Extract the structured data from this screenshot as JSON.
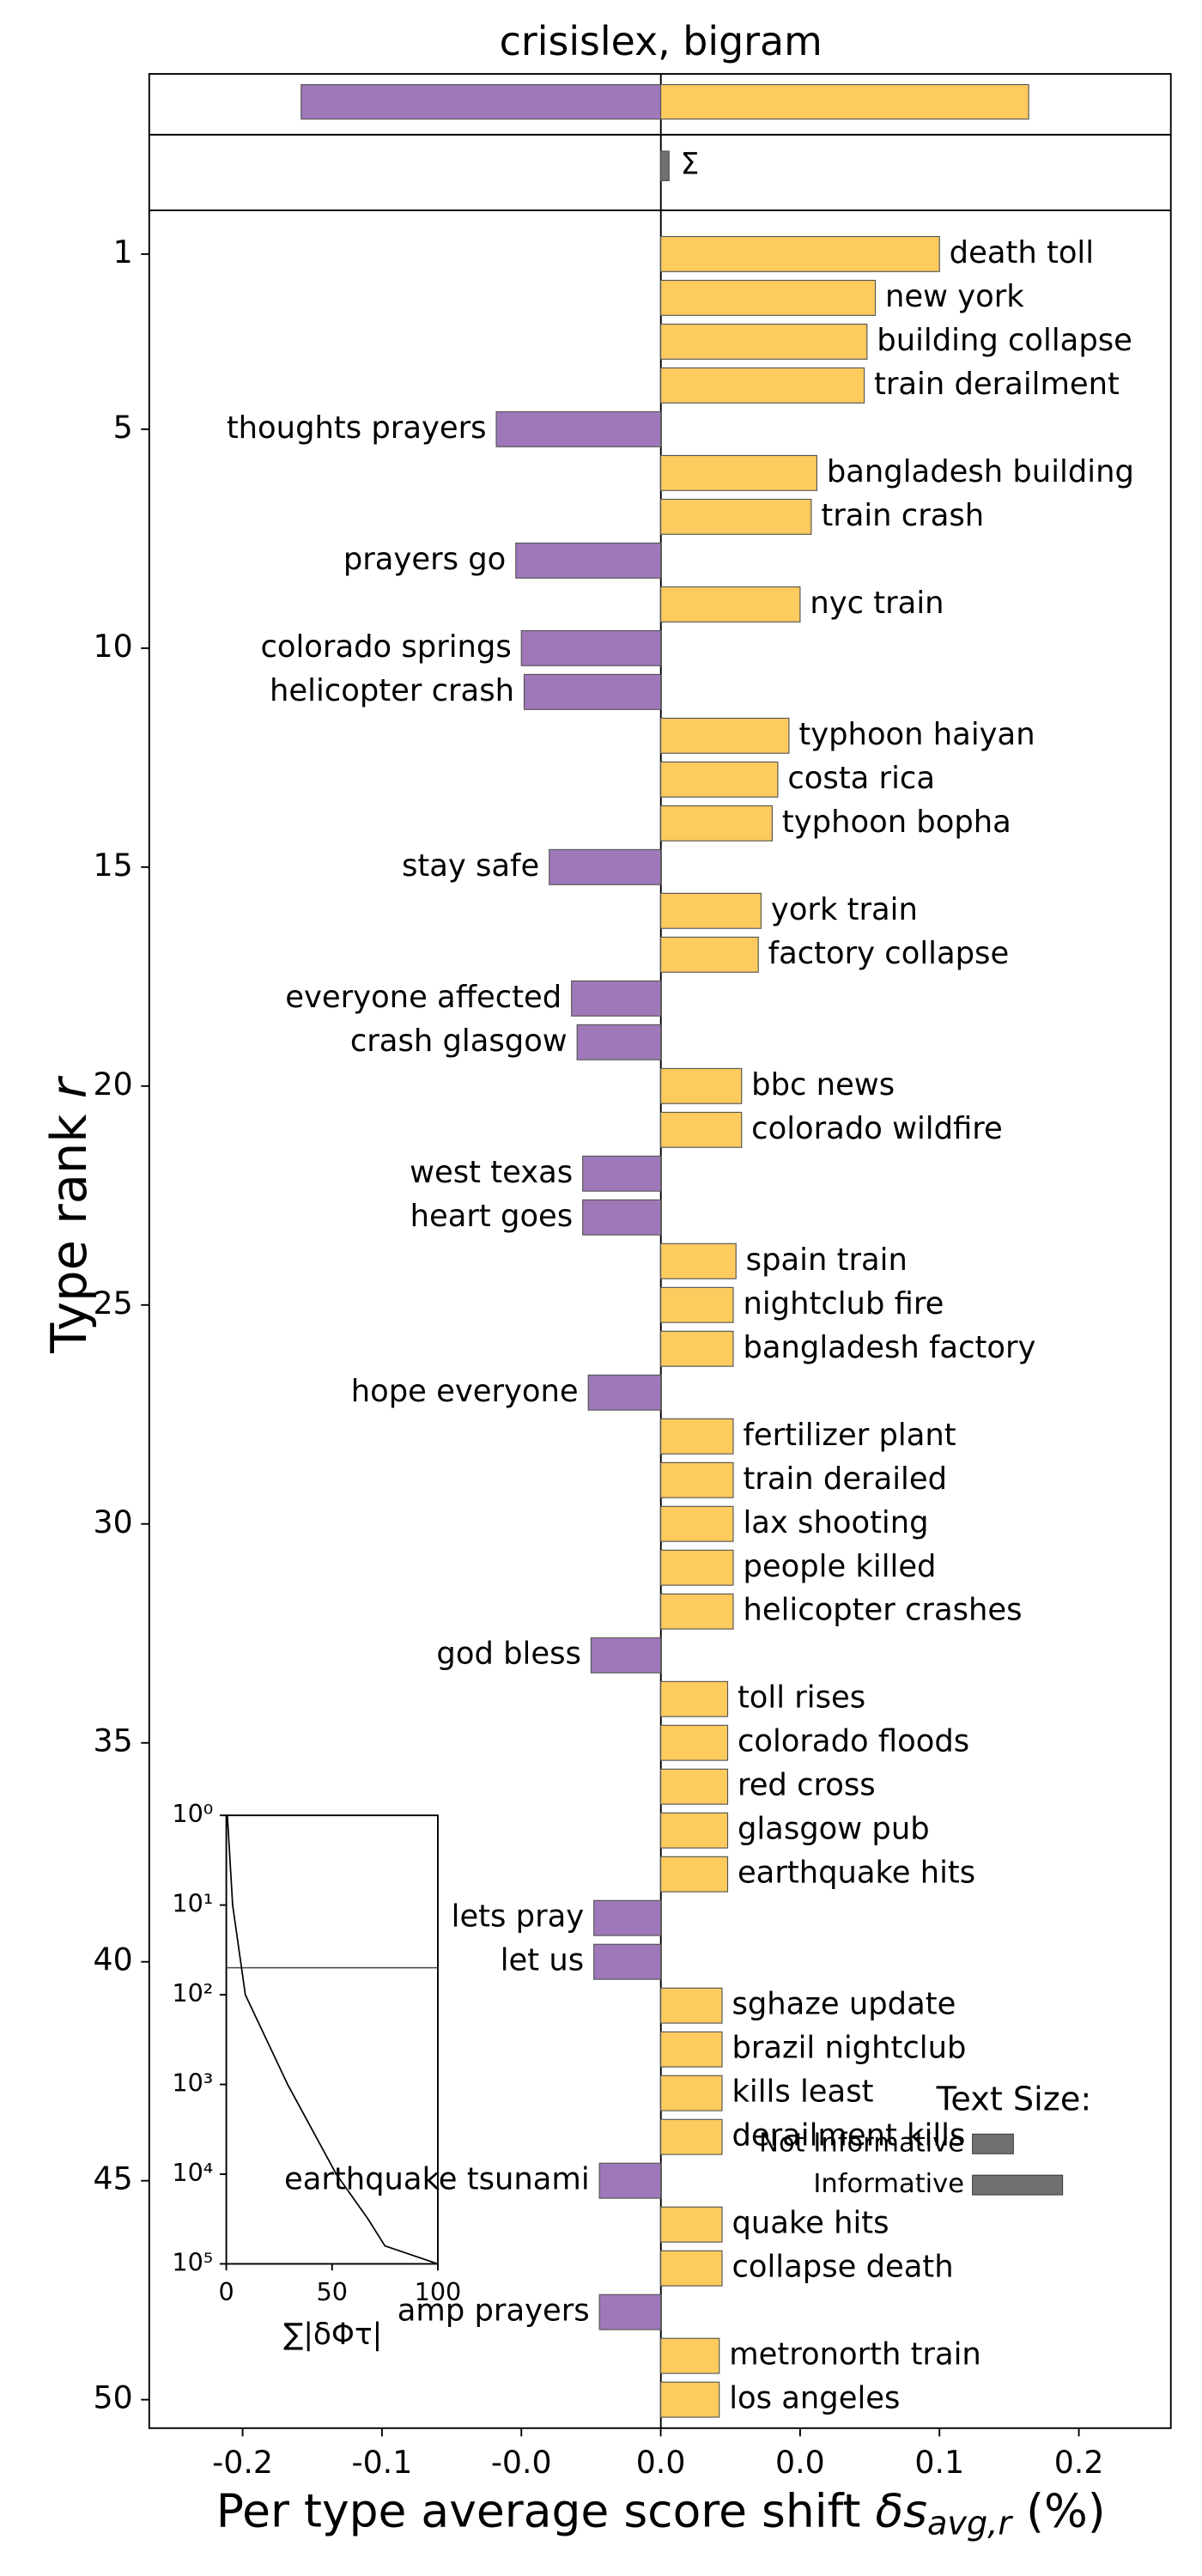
{
  "chart_data": [
    {
      "type": "barh",
      "title": "crisislex, bigram",
      "categories": [
        "death toll",
        "new york",
        "building collapse",
        "train derailment",
        "thoughts prayers",
        "bangladesh building",
        "train crash",
        "prayers go",
        "nyc train",
        "colorado springs",
        "helicopter crash",
        "typhoon haiyan",
        "costa rica",
        "typhoon bopha",
        "stay safe",
        "york train",
        "factory collapse",
        "everyone affected",
        "crash glasgow",
        "bbc news",
        "colorado wildfire",
        "west texas",
        "heart goes",
        "spain train",
        "nightclub fire",
        "bangladesh factory",
        "hope everyone",
        "fertilizer plant",
        "train derailed",
        "lax shooting",
        "people killed",
        "helicopter crashes",
        "god bless",
        "toll rises",
        "colorado floods",
        "red cross",
        "glasgow pub",
        "earthquake hits",
        "lets pray",
        "let us",
        "sghaze update",
        "brazil nightclub",
        "kills least",
        "derailment kills",
        "earthquake tsunami",
        "quake hits",
        "collapse death",
        "amp prayers",
        "metronorth train",
        "los angeles"
      ],
      "values": [
        0.1,
        0.077,
        0.074,
        0.073,
        -0.059,
        0.056,
        0.054,
        -0.052,
        0.05,
        -0.05,
        -0.049,
        0.046,
        0.042,
        0.04,
        -0.04,
        0.036,
        0.035,
        -0.032,
        -0.03,
        0.029,
        0.029,
        -0.028,
        -0.028,
        0.027,
        0.026,
        0.026,
        -0.026,
        0.026,
        0.026,
        0.026,
        0.026,
        0.026,
        -0.025,
        0.024,
        0.024,
        0.024,
        0.024,
        0.024,
        -0.024,
        -0.024,
        0.022,
        0.022,
        0.022,
        0.022,
        -0.022,
        0.022,
        0.022,
        -0.022,
        0.021,
        0.021
      ],
      "colors": {
        "positive": "#fecb5e",
        "negative": "#9e78b8"
      },
      "xlim": [
        -0.1835,
        0.183
      ],
      "xticks": [
        {
          "value": -0.15,
          "label": "-0.2"
        },
        {
          "value": -0.1,
          "label": "-0.1"
        },
        {
          "value": -0.05,
          "label": "-0.0"
        },
        {
          "value": 0,
          "label": "0.0"
        },
        {
          "value": 0.05,
          "label": "0.0"
        },
        {
          "value": 0.1,
          "label": "0.1"
        },
        {
          "value": 0.15,
          "label": "0.2"
        }
      ],
      "ylim": [
        0,
        50.65
      ],
      "invert_y": true,
      "yticks": [
        1,
        5,
        10,
        15,
        20,
        25,
        30,
        35,
        40,
        45,
        50
      ],
      "xlabel": {
        "text": "Per type average score shift ",
        "symbol": "δs",
        "subscript": "avg,r",
        "suffix": " (%)"
      },
      "ylabel": {
        "text": "Type rank ",
        "symbol": "r"
      },
      "legend": {
        "title": "Text Size:",
        "items": [
          "Not Informative",
          "Informative"
        ]
      }
    },
    {
      "type": "barh",
      "values": [
        -0.129,
        0.132
      ],
      "colors": [
        "#9e78b8",
        "#fecb5e"
      ]
    },
    {
      "type": "barh",
      "categories": [
        "Σ"
      ],
      "values": [
        0.003
      ],
      "colors": [
        "#707070"
      ]
    },
    {
      "type": "line",
      "x": [
        0.5,
        3,
        9,
        29,
        52,
        67,
        75,
        100
      ],
      "y": [
        1,
        10,
        100,
        1000,
        10000,
        31623,
        63096,
        100000
      ],
      "xlim": [
        0,
        100
      ],
      "ylim": [
        1,
        100000
      ],
      "log_y": true,
      "invert_y": true,
      "xticks": [
        0,
        50,
        100
      ],
      "yticks": [
        {
          "value": 1,
          "label": "10⁰"
        },
        {
          "value": 10,
          "label": "10¹"
        },
        {
          "value": 100,
          "label": "10²"
        },
        {
          "value": 1000,
          "label": "10³"
        },
        {
          "value": 10000,
          "label": "10⁴"
        },
        {
          "value": 100000,
          "label": "10⁵"
        }
      ],
      "xlabel": "∑|δΦτ|",
      "cutoff_rank": 50
    }
  ]
}
